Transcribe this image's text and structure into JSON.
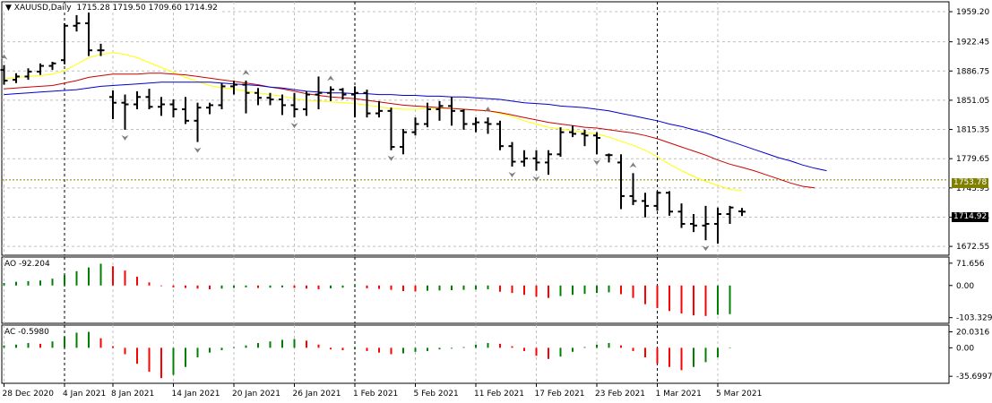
{
  "chart_data": {
    "type": "candlestick",
    "symbol": "XAUUSD,Daily",
    "ohlc_header": "1715.28 1719.50 1709.60 1714.92",
    "current_price": "1714.92",
    "horizontal_level": "1753.78",
    "price_axis": {
      "ticks": [
        "1959.20",
        "1922.45",
        "1886.75",
        "1851.05",
        "1815.35",
        "1779.65",
        "1743.95",
        "1708.25",
        "1672.55"
      ],
      "range": [
        1665,
        1968
      ]
    },
    "x_labels": [
      {
        "label": "28 Dec 2020",
        "bar": 0
      },
      {
        "label": "4 Jan 2021",
        "bar": 5
      },
      {
        "label": "8 Jan 2021",
        "bar": 9
      },
      {
        "label": "14 Jan 2021",
        "bar": 14
      },
      {
        "label": "20 Jan 2021",
        "bar": 19
      },
      {
        "label": "26 Jan 2021",
        "bar": 24
      },
      {
        "label": "1 Feb 2021",
        "bar": 29
      },
      {
        "label": "5 Feb 2021",
        "bar": 34
      },
      {
        "label": "11 Feb 2021",
        "bar": 39
      },
      {
        "label": "17 Feb 2021",
        "bar": 44
      },
      {
        "label": "23 Feb 2021",
        "bar": 49
      },
      {
        "label": "1 Mar 2021",
        "bar": 54
      },
      {
        "label": "5 Mar 2021",
        "bar": 59
      }
    ],
    "period_separators": [
      5,
      29,
      54
    ],
    "bars": [
      {
        "o": 1888,
        "h": 1894,
        "l": 1870,
        "c": 1875
      },
      {
        "o": 1876,
        "h": 1884,
        "l": 1872,
        "c": 1880
      },
      {
        "o": 1880,
        "h": 1890,
        "l": 1876,
        "c": 1886
      },
      {
        "o": 1886,
        "h": 1896,
        "l": 1882,
        "c": 1893
      },
      {
        "o": 1893,
        "h": 1898,
        "l": 1888,
        "c": 1896
      },
      {
        "o": 1900,
        "h": 1945,
        "l": 1895,
        "c": 1942
      },
      {
        "o": 1942,
        "h": 1955,
        "l": 1935,
        "c": 1945
      },
      {
        "o": 1945,
        "h": 1960,
        "l": 1905,
        "c": 1912
      },
      {
        "o": 1912,
        "h": 1920,
        "l": 1905,
        "c": 1912
      },
      {
        "o": 1855,
        "h": 1863,
        "l": 1828,
        "c": 1848
      },
      {
        "o": 1848,
        "h": 1858,
        "l": 1815,
        "c": 1846
      },
      {
        "o": 1846,
        "h": 1862,
        "l": 1840,
        "c": 1855
      },
      {
        "o": 1855,
        "h": 1865,
        "l": 1840,
        "c": 1843
      },
      {
        "o": 1843,
        "h": 1855,
        "l": 1832,
        "c": 1846
      },
      {
        "o": 1846,
        "h": 1852,
        "l": 1830,
        "c": 1840
      },
      {
        "o": 1840,
        "h": 1855,
        "l": 1822,
        "c": 1826
      },
      {
        "o": 1826,
        "h": 1848,
        "l": 1800,
        "c": 1842
      },
      {
        "o": 1842,
        "h": 1848,
        "l": 1834,
        "c": 1845
      },
      {
        "o": 1845,
        "h": 1872,
        "l": 1840,
        "c": 1868
      },
      {
        "o": 1868,
        "h": 1875,
        "l": 1858,
        "c": 1870
      },
      {
        "o": 1870,
        "h": 1875,
        "l": 1835,
        "c": 1860
      },
      {
        "o": 1860,
        "h": 1866,
        "l": 1845,
        "c": 1854
      },
      {
        "o": 1854,
        "h": 1860,
        "l": 1845,
        "c": 1852
      },
      {
        "o": 1852,
        "h": 1858,
        "l": 1833,
        "c": 1845
      },
      {
        "o": 1845,
        "h": 1860,
        "l": 1830,
        "c": 1840
      },
      {
        "o": 1840,
        "h": 1862,
        "l": 1832,
        "c": 1858
      },
      {
        "o": 1858,
        "h": 1880,
        "l": 1840,
        "c": 1860
      },
      {
        "o": 1860,
        "h": 1868,
        "l": 1850,
        "c": 1864
      },
      {
        "o": 1864,
        "h": 1866,
        "l": 1852,
        "c": 1858
      },
      {
        "o": 1858,
        "h": 1868,
        "l": 1830,
        "c": 1860
      },
      {
        "o": 1860,
        "h": 1864,
        "l": 1830,
        "c": 1835
      },
      {
        "o": 1835,
        "h": 1850,
        "l": 1830,
        "c": 1838
      },
      {
        "o": 1838,
        "h": 1842,
        "l": 1790,
        "c": 1794
      },
      {
        "o": 1794,
        "h": 1816,
        "l": 1785,
        "c": 1812
      },
      {
        "o": 1812,
        "h": 1830,
        "l": 1808,
        "c": 1822
      },
      {
        "o": 1822,
        "h": 1848,
        "l": 1818,
        "c": 1840
      },
      {
        "o": 1840,
        "h": 1850,
        "l": 1826,
        "c": 1844
      },
      {
        "o": 1844,
        "h": 1855,
        "l": 1820,
        "c": 1838
      },
      {
        "o": 1838,
        "h": 1840,
        "l": 1815,
        "c": 1822
      },
      {
        "o": 1822,
        "h": 1830,
        "l": 1812,
        "c": 1824
      },
      {
        "o": 1824,
        "h": 1830,
        "l": 1810,
        "c": 1822
      },
      {
        "o": 1822,
        "h": 1826,
        "l": 1790,
        "c": 1795
      },
      {
        "o": 1795,
        "h": 1800,
        "l": 1770,
        "c": 1776
      },
      {
        "o": 1776,
        "h": 1790,
        "l": 1770,
        "c": 1780
      },
      {
        "o": 1780,
        "h": 1790,
        "l": 1765,
        "c": 1775
      },
      {
        "o": 1775,
        "h": 1790,
        "l": 1760,
        "c": 1785
      },
      {
        "o": 1785,
        "h": 1818,
        "l": 1782,
        "c": 1812
      },
      {
        "o": 1812,
        "h": 1820,
        "l": 1806,
        "c": 1810
      },
      {
        "o": 1810,
        "h": 1815,
        "l": 1795,
        "c": 1808
      },
      {
        "o": 1808,
        "h": 1812,
        "l": 1785,
        "c": 1805
      },
      {
        "o": 1784,
        "h": 1786,
        "l": 1775,
        "c": 1784
      },
      {
        "o": 1775,
        "h": 1785,
        "l": 1718,
        "c": 1734
      },
      {
        "o": 1734,
        "h": 1762,
        "l": 1723,
        "c": 1728
      },
      {
        "o": 1728,
        "h": 1738,
        "l": 1708,
        "c": 1722
      },
      {
        "o": 1722,
        "h": 1740,
        "l": 1716,
        "c": 1738
      },
      {
        "o": 1738,
        "h": 1740,
        "l": 1710,
        "c": 1715
      },
      {
        "o": 1715,
        "h": 1725,
        "l": 1695,
        "c": 1700
      },
      {
        "o": 1700,
        "h": 1712,
        "l": 1690,
        "c": 1698
      },
      {
        "o": 1698,
        "h": 1722,
        "l": 1680,
        "c": 1700
      },
      {
        "o": 1700,
        "h": 1720,
        "l": 1676,
        "c": 1712
      },
      {
        "o": 1712,
        "h": 1722,
        "l": 1700,
        "c": 1720
      },
      {
        "o": 1715.28,
        "h": 1719.5,
        "l": 1709.6,
        "c": 1714.92
      }
    ],
    "moving_averages": [
      {
        "color": "#ffff00",
        "start": 0,
        "values": [
          1877,
          1879,
          1880,
          1881,
          1883,
          1887,
          1895,
          1903,
          1907,
          1909,
          1907,
          1903,
          1897,
          1891,
          1885,
          1879,
          1874,
          1869,
          1866,
          1865,
          1862,
          1860,
          1858,
          1856,
          1853,
          1851,
          1850,
          1849,
          1848,
          1847,
          1845,
          1843,
          1841,
          1840,
          1840,
          1841,
          1841,
          1841,
          1840,
          1839,
          1838,
          1835,
          1831,
          1826,
          1822,
          1818,
          1816,
          1814,
          1812,
          1810,
          1806,
          1801,
          1796,
          1790,
          1782,
          1773,
          1765,
          1758,
          1752,
          1747,
          1742,
          1741
        ]
      },
      {
        "color": "#cc0000",
        "start": 0,
        "values": [
          1865,
          1866,
          1867,
          1868,
          1869,
          1872,
          1875,
          1879,
          1881,
          1883,
          1883,
          1883,
          1884,
          1884,
          1883,
          1882,
          1880,
          1878,
          1876,
          1874,
          1872,
          1870,
          1867,
          1865,
          1862,
          1859,
          1857,
          1855,
          1854,
          1853,
          1851,
          1849,
          1847,
          1845,
          1844,
          1843,
          1842,
          1841,
          1840,
          1839,
          1838,
          1836,
          1833,
          1830,
          1827,
          1824,
          1822,
          1820,
          1818,
          1817,
          1815,
          1813,
          1811,
          1808,
          1804,
          1799,
          1794,
          1789,
          1784,
          1778,
          1773,
          1769,
          1765,
          1760,
          1755,
          1750,
          1746,
          1744
        ]
      },
      {
        "color": "#0000cc",
        "start": 0,
        "values": [
          1858,
          1859,
          1860,
          1861,
          1862,
          1863,
          1864,
          1866,
          1868,
          1869,
          1870,
          1871,
          1872,
          1873,
          1873,
          1873,
          1873,
          1873,
          1872,
          1871,
          1870,
          1869,
          1867,
          1866,
          1864,
          1862,
          1861,
          1860,
          1860,
          1859,
          1859,
          1858,
          1858,
          1857,
          1857,
          1856,
          1856,
          1855,
          1855,
          1854,
          1853,
          1852,
          1850,
          1848,
          1847,
          1846,
          1844,
          1843,
          1842,
          1840,
          1838,
          1835,
          1832,
          1829,
          1826,
          1822,
          1819,
          1815,
          1811,
          1806,
          1801,
          1796,
          1791,
          1786,
          1781,
          1777,
          1772,
          1768,
          1765
        ]
      }
    ],
    "fractal_up_bars": [
      0,
      20,
      27,
      40,
      52
    ],
    "fractal_down_bars": [
      10,
      16,
      24,
      32,
      42,
      44,
      49,
      58
    ],
    "ao": {
      "label": "AO -92.204",
      "ticks": [
        "71.656",
        "0.00",
        "-103.329"
      ],
      "range": [
        -110,
        80
      ],
      "values": [
        8,
        12,
        14,
        16,
        22,
        34,
        46,
        58,
        70,
        62,
        48,
        28,
        10,
        -2,
        -6,
        -8,
        -10,
        -12,
        -10,
        -8,
        -6,
        -8,
        -7,
        -6,
        -8,
        -10,
        -12,
        -9,
        -7,
        -5,
        -9,
        -11,
        -14,
        -18,
        -19,
        -17,
        -16,
        -15,
        -14,
        -13,
        -12,
        -20,
        -24,
        -30,
        -36,
        -40,
        -34,
        -30,
        -27,
        -24,
        -22,
        -28,
        -40,
        -60,
        -72,
        -82,
        -90,
        -96,
        -98,
        -94,
        -92
      ],
      "up_color": "#008000",
      "down_color": "#ff0000"
    },
    "ac": {
      "label": "AC -0.5980",
      "ticks": [
        "20.0316",
        "0.00",
        "-35.6997"
      ],
      "range": [
        -40,
        24
      ],
      "values": [
        3,
        4,
        6,
        5,
        8,
        14,
        19,
        20,
        12,
        2,
        -8,
        -20,
        -30,
        -38,
        -34,
        -24,
        -12,
        -6,
        -3,
        1,
        3,
        6,
        8,
        10,
        11,
        9,
        4,
        -2,
        -3,
        -2,
        -4,
        -6,
        -8,
        -7,
        -5,
        -4,
        -2,
        -1,
        1,
        4,
        6,
        5,
        2,
        -4,
        -10,
        -14,
        -11,
        -5,
        1,
        4,
        6,
        3,
        -4,
        -12,
        -20,
        -24,
        -28,
        -24,
        -18,
        -12,
        -0.6
      ],
      "up_color": "#008000",
      "down_color": "#ff0000"
    }
  }
}
